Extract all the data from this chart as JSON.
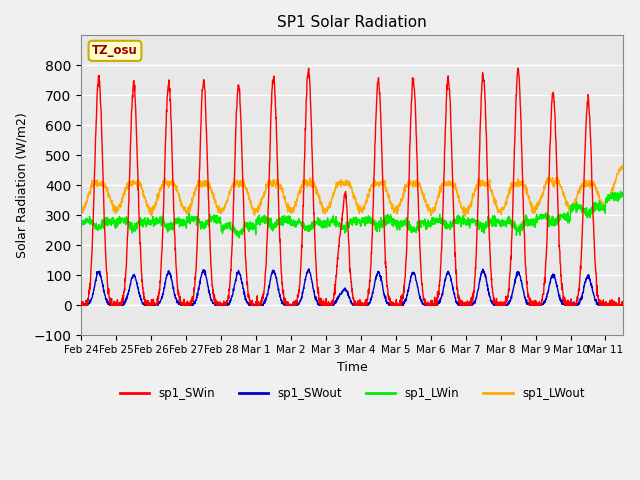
{
  "title": "SP1 Solar Radiation",
  "xlabel": "Time",
  "ylabel": "Solar Radiation (W/m2)",
  "ylim": [
    -100,
    900
  ],
  "yticks": [
    -100,
    0,
    100,
    200,
    300,
    400,
    500,
    600,
    700,
    800
  ],
  "date_labels": [
    "Feb 24",
    "Feb 25",
    "Feb 26",
    "Feb 27",
    "Feb 28",
    "Mar 1",
    "Mar 2",
    "Mar 3",
    "Mar 4",
    "Mar 5",
    "Mar 6",
    "Mar 7",
    "Mar 8",
    "Mar 9",
    "Mar 10",
    "Mar 11"
  ],
  "tz_label": "TZ_osu",
  "colors": {
    "SWin": "#ff0000",
    "SWout": "#0000cc",
    "LWin": "#00ee00",
    "LWout": "#ffaa00"
  },
  "legend_labels": [
    "sp1_SWin",
    "sp1_SWout",
    "sp1_LWin",
    "sp1_LWout"
  ],
  "background_color": "#e8e8e8",
  "grid_color": "#ffffff",
  "n_days": 16,
  "day_peaks_SWin": [
    755,
    735,
    735,
    750,
    735,
    760,
    780,
    500,
    750,
    750,
    760,
    770,
    780,
    705,
    680,
    0
  ],
  "day_peaks_SWout": [
    110,
    100,
    110,
    115,
    110,
    115,
    115,
    75,
    110,
    110,
    110,
    115,
    110,
    100,
    95,
    0
  ],
  "LWin_base": 270,
  "LWout_base": 315,
  "LWout_day_peak": 455,
  "fig_facecolor": "#f0f0f0"
}
